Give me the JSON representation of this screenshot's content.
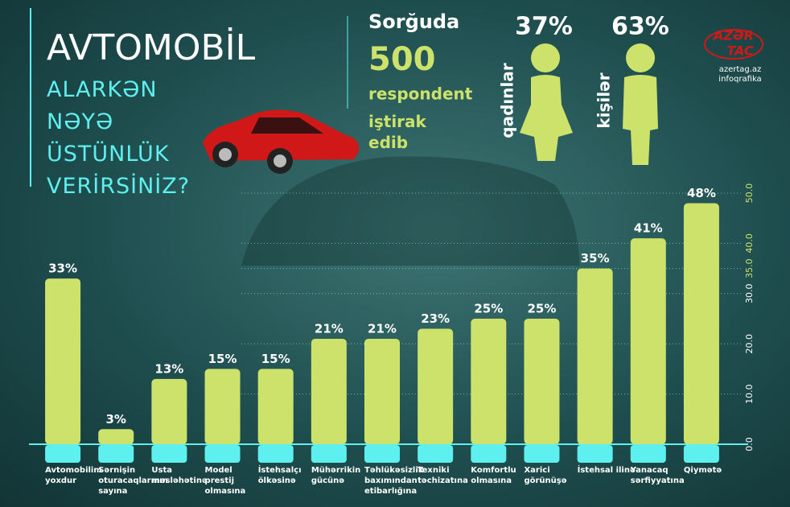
{
  "header": {
    "title": "AVTOMOBİL",
    "subtitle": "ALARKƏN NƏYƏ ÜSTÜNLÜK VERİRSİNİZ?"
  },
  "survey": {
    "line1": "Sorğuda",
    "count": "500",
    "line2": "respondent",
    "line3": "iştirak edib",
    "women_percent": "37%",
    "women_label": "qadınlar",
    "men_percent": "63%",
    "men_label": "kişilər"
  },
  "logo": {
    "top": "AZƏR",
    "bottom": "TAC",
    "site": "azertag.az",
    "caption": "infoqrafika"
  },
  "chart_data": {
    "type": "bar",
    "categories": [
      "Avtomobilim yoxdur",
      "Sərnişin oturacaqlarının sayına",
      "Usta məsləhətinə",
      "Model prestij olmasına",
      "İstehsalçı ölkəsinə",
      "Mühərrikin gücünə",
      "Təhlükəsizlik baxımından etibarlığına",
      "Texniki təchizatına",
      "Komfortlu olmasına",
      "Xarici görünüşə",
      "İstehsal ilinə",
      "Yanacaq sərfiyyatına",
      "Qiymətə"
    ],
    "values": [
      33,
      3,
      13,
      15,
      15,
      21,
      21,
      23,
      25,
      25,
      35,
      41,
      48
    ],
    "value_labels": [
      "33%",
      "3%",
      "13%",
      "15%",
      "15%",
      "21%",
      "21%",
      "23%",
      "25%",
      "25%",
      "35%",
      "41%",
      "48%"
    ],
    "color": "#cde26b",
    "ylim": [
      0,
      50
    ],
    "yticks": [
      {
        "value": 0,
        "label": "0.0"
      },
      {
        "value": 10,
        "label": "10.0"
      },
      {
        "value": 20,
        "label": "20.0"
      },
      {
        "value": 30,
        "label": "30.0"
      },
      {
        "value": 35,
        "label": "35.0"
      },
      {
        "value": 40,
        "label": "40.0"
      },
      {
        "value": 50,
        "label": "50.0"
      }
    ],
    "grid": true
  }
}
